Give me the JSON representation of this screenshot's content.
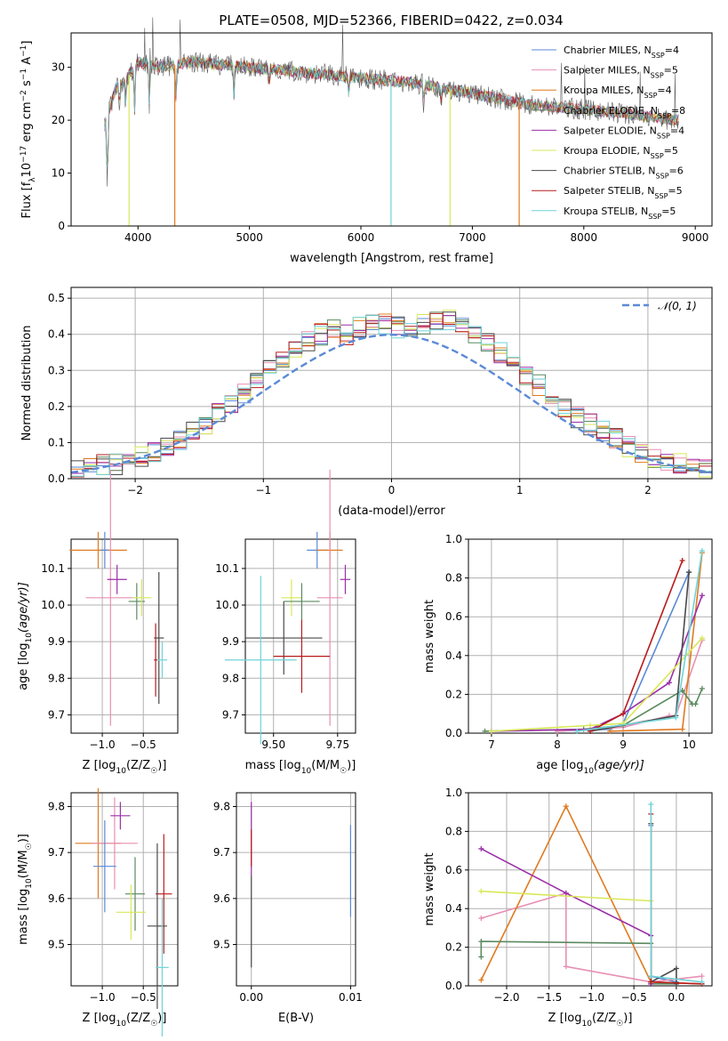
{
  "figure_title": "PLATE=0508, MJD=52366, FIBERID=0422, z=0.034",
  "colors": {
    "chabrier_miles": "#5b8ad6",
    "salpeter_miles": "#e88fb4",
    "kroupa_miles": "#e07a1f",
    "chabrier_elodie": "#5a8a5f",
    "salpeter_elodie": "#9b2fa8",
    "kroupa_elodie": "#d8e85a",
    "chabrier_stelib": "#4a4a4a",
    "salpeter_stelib": "#b81c1c",
    "kroupa_stelib": "#6fd3d8",
    "gaussian": "#5b8ad6",
    "grid": "#b0b0b0"
  },
  "chart_data": [
    {
      "id": "spectrum",
      "type": "line",
      "xlabel": "wavelength [Angstrom, rest frame]",
      "ylabel": "Flux [f_λ 10^-17 erg cm^-2 s^-1 A^-1]",
      "xlim": [
        3400,
        9150
      ],
      "ylim": [
        0,
        36.5
      ],
      "xticks": [
        4000,
        5000,
        6000,
        7000,
        8000,
        9000
      ],
      "yticks": [
        0,
        10,
        20,
        30
      ],
      "grid": false,
      "legend_position": "top-right",
      "legend": [
        {
          "key": "chabrier_miles",
          "label": "Chabrier MILES, N",
          "sub": "SSP",
          "eq": "=4"
        },
        {
          "key": "salpeter_miles",
          "label": "Salpeter MILES, N",
          "sub": "SSP",
          "eq": "=5"
        },
        {
          "key": "kroupa_miles",
          "label": "Kroupa MILES, N",
          "sub": "SSP",
          "eq": "=4"
        },
        {
          "key": "chabrier_elodie",
          "label": "Chabrier ELODIE, N",
          "sub": "SSP",
          "eq": "=8"
        },
        {
          "key": "salpeter_elodie",
          "label": "Salpeter ELODIE, N",
          "sub": "SSP",
          "eq": "=4"
        },
        {
          "key": "kroupa_elodie",
          "label": "Kroupa ELODIE, N",
          "sub": "SSP",
          "eq": "=5"
        },
        {
          "key": "chabrier_stelib",
          "label": "Chabrier STELIB, N",
          "sub": "SSP",
          "eq": "=6"
        },
        {
          "key": "salpeter_stelib",
          "label": "Salpeter STELIB, N",
          "sub": "SSP",
          "eq": "=5"
        },
        {
          "key": "kroupa_stelib",
          "label": "Kroupa STELIB, N",
          "sub": "SSP",
          "eq": "=5"
        }
      ],
      "continuum": [
        [
          3700,
          19
        ],
        [
          3800,
          26
        ],
        [
          3900,
          28
        ],
        [
          4000,
          31
        ],
        [
          4200,
          30
        ],
        [
          4500,
          31
        ],
        [
          5000,
          30
        ],
        [
          5500,
          29
        ],
        [
          6000,
          28
        ],
        [
          6500,
          27
        ],
        [
          7000,
          25
        ],
        [
          7500,
          23
        ],
        [
          8000,
          22
        ],
        [
          8500,
          21
        ],
        [
          8800,
          20
        ]
      ],
      "dropouts": [
        {
          "key": "kroupa_miles",
          "x": 4330,
          "y": 0
        },
        {
          "key": "kroupa_stelib",
          "x": 6270,
          "y": 0
        },
        {
          "key": "kroupa_elodie",
          "x": 6800,
          "y": 0
        },
        {
          "key": "kroupa_miles",
          "x": 7420,
          "y": 0
        },
        {
          "key": "kroupa_elodie",
          "x": 3920,
          "y": 0
        }
      ]
    },
    {
      "id": "residuals",
      "type": "histogram",
      "xlabel": "(data-model)/error",
      "ylabel": "Normed distribution",
      "xlim": [
        -2.5,
        2.5
      ],
      "ylim": [
        0,
        0.53
      ],
      "xticks": [
        -2,
        -1,
        0,
        1,
        2
      ],
      "yticks": [
        0.0,
        0.1,
        0.2,
        0.3,
        0.4,
        0.5
      ],
      "grid": true,
      "legend_position": "top-right",
      "gaussian_label": "N(0,1)",
      "bin_width": 0.1,
      "envelope": [
        0.02,
        0.03,
        0.04,
        0.04,
        0.05,
        0.06,
        0.07,
        0.09,
        0.11,
        0.13,
        0.15,
        0.18,
        0.21,
        0.24,
        0.27,
        0.3,
        0.33,
        0.36,
        0.38,
        0.4,
        0.41,
        0.4,
        0.42,
        0.43,
        0.43,
        0.42,
        0.41,
        0.43,
        0.44,
        0.44,
        0.42,
        0.4,
        0.38,
        0.35,
        0.32,
        0.29,
        0.26,
        0.23,
        0.2,
        0.17,
        0.15,
        0.13,
        0.11,
        0.09,
        0.07,
        0.06,
        0.05,
        0.04,
        0.04,
        0.03
      ]
    },
    {
      "id": "age_vs_z",
      "type": "errorbar",
      "xlabel": "Z [log10(Z/Z☉)]",
      "ylabel": "age [log10(age/yr)]",
      "xlim": [
        -1.38,
        -0.08
      ],
      "ylim": [
        9.65,
        10.18
      ],
      "xticks": [
        -1.0,
        -0.5
      ],
      "xticklabels": [
        "−1.0",
        "−0.5"
      ],
      "yticks": [
        9.7,
        9.8,
        9.9,
        10.0,
        10.1
      ],
      "grid": true,
      "points": [
        {
          "key": "kroupa_miles",
          "x": -1.05,
          "xerr": 0.35,
          "y": 10.15,
          "yerr": 0.05
        },
        {
          "key": "chabrier_miles",
          "x": -0.97,
          "xerr": 0.05,
          "y": 10.15,
          "yerr": 0.05
        },
        {
          "key": "salpeter_miles",
          "x": -0.9,
          "xerr": 0.3,
          "y": 10.02,
          "yerr": 0.35
        },
        {
          "key": "salpeter_elodie",
          "x": -0.82,
          "xerr": 0.12,
          "y": 10.07,
          "yerr": 0.04
        },
        {
          "key": "chabrier_elodie",
          "x": -0.58,
          "xerr": 0.1,
          "y": 10.01,
          "yerr": 0.05
        },
        {
          "key": "kroupa_elodie",
          "x": -0.52,
          "xerr": 0.12,
          "y": 10.02,
          "yerr": 0.05
        },
        {
          "key": "salpeter_stelib",
          "x": -0.35,
          "xerr": 0.02,
          "y": 9.85,
          "yerr": 0.1
        },
        {
          "key": "chabrier_stelib",
          "x": -0.31,
          "xerr": 0.06,
          "y": 9.91,
          "yerr": 0.18
        },
        {
          "key": "kroupa_stelib",
          "x": -0.27,
          "xerr": 0.06,
          "y": 9.85,
          "yerr": 0.05
        }
      ]
    },
    {
      "id": "age_vs_mass",
      "type": "errorbar",
      "xlabel": "mass [log10(M/M☉)]",
      "ylabel": "",
      "xlim": [
        9.39,
        9.82
      ],
      "ylim": [
        9.65,
        10.18
      ],
      "xticks": [
        9.5,
        9.75
      ],
      "xticklabels": [
        "9.50",
        "9.75"
      ],
      "yticks": [
        9.7,
        9.8,
        9.9,
        10.0,
        10.1
      ],
      "grid": true,
      "points": [
        {
          "key": "chabrier_miles",
          "x": 9.67,
          "xerr": 0.04,
          "y": 10.15,
          "yerr": 0.05
        },
        {
          "key": "kroupa_miles",
          "x": 9.72,
          "xerr": 0.05,
          "y": 10.15,
          "yerr": 0.05
        },
        {
          "key": "salpeter_elodie",
          "x": 9.78,
          "xerr": 0.02,
          "y": 10.07,
          "yerr": 0.04
        },
        {
          "key": "salpeter_miles",
          "x": 9.72,
          "xerr": 0.05,
          "y": 10.02,
          "yerr": 0.35
        },
        {
          "key": "kroupa_elodie",
          "x": 9.57,
          "xerr": 0.04,
          "y": 10.02,
          "yerr": 0.05
        },
        {
          "key": "chabrier_elodie",
          "x": 9.61,
          "xerr": 0.07,
          "y": 10.01,
          "yerr": 0.05
        },
        {
          "key": "chabrier_stelib",
          "x": 9.54,
          "xerr": 0.15,
          "y": 9.91,
          "yerr": 0.1
        },
        {
          "key": "salpeter_stelib",
          "x": 9.61,
          "xerr": 0.11,
          "y": 9.86,
          "yerr": 0.1
        },
        {
          "key": "kroupa_stelib",
          "x": 9.45,
          "xerr": 0.14,
          "y": 9.85,
          "yerr": 0.23
        }
      ]
    },
    {
      "id": "mass_weight_vs_age",
      "type": "line",
      "xlabel": "age [log10(age/yr)]",
      "ylabel": "mass weight",
      "xlim": [
        6.65,
        10.35
      ],
      "ylim": [
        0,
        1.0
      ],
      "xticks": [
        7,
        8,
        9,
        10
      ],
      "yticks": [
        0.0,
        0.2,
        0.4,
        0.6,
        0.8,
        1.0
      ],
      "grid": true,
      "series": [
        {
          "key": "chabrier_miles",
          "x": [
            8.0,
            8.8,
            9.0,
            10.0
          ],
          "y": [
            0.01,
            0.02,
            0.05,
            0.83
          ]
        },
        {
          "key": "salpeter_miles",
          "x": [
            8.0,
            9.0,
            9.7,
            9.8,
            10.2
          ],
          "y": [
            0.01,
            0.03,
            0.09,
            0.09,
            0.48
          ]
        },
        {
          "key": "kroupa_miles",
          "x": [
            8.8,
            9.9,
            10.2
          ],
          "y": [
            0.01,
            0.02,
            0.93
          ]
        },
        {
          "key": "chabrier_elodie",
          "x": [
            6.9,
            8.4,
            9.0,
            9.9,
            10.05,
            10.1,
            10.2
          ],
          "y": [
            0.01,
            0.02,
            0.04,
            0.22,
            0.15,
            0.15,
            0.23
          ]
        },
        {
          "key": "salpeter_elodie",
          "x": [
            7.0,
            8.5,
            9.0,
            9.7,
            10.2
          ],
          "y": [
            0.01,
            0.02,
            0.1,
            0.26,
            0.71
          ]
        },
        {
          "key": "kroupa_elodie",
          "x": [
            7.0,
            8.5,
            9.0,
            10.2
          ],
          "y": [
            0.01,
            0.04,
            0.05,
            0.49
          ]
        },
        {
          "key": "chabrier_stelib",
          "x": [
            8.5,
            9.8,
            10.0
          ],
          "y": [
            0.01,
            0.09,
            0.83
          ]
        },
        {
          "key": "salpeter_stelib",
          "x": [
            8.5,
            9.0,
            9.9
          ],
          "y": [
            0.01,
            0.1,
            0.89
          ]
        },
        {
          "key": "kroupa_stelib",
          "x": [
            8.3,
            9.8,
            10.2
          ],
          "y": [
            0.01,
            0.08,
            0.94
          ]
        }
      ]
    },
    {
      "id": "mass_vs_z",
      "type": "errorbar",
      "xlabel": "Z [log10(Z/Z☉)]",
      "ylabel": "mass [log10(M/M☉)]",
      "xlim": [
        -1.38,
        -0.08
      ],
      "ylim": [
        9.41,
        9.83
      ],
      "xticks": [
        -1.0,
        -0.5
      ],
      "xticklabels": [
        "−1.0",
        "−0.5"
      ],
      "yticks": [
        9.5,
        9.6,
        9.7,
        9.8
      ],
      "grid": true,
      "points": [
        {
          "key": "kroupa_miles",
          "x": -1.05,
          "xerr": 0.28,
          "y": 9.72,
          "yerr": 0.12
        },
        {
          "key": "salpeter_miles",
          "x": -0.85,
          "xerr": 0.28,
          "y": 9.72,
          "yerr": 0.1
        },
        {
          "key": "salpeter_elodie",
          "x": -0.78,
          "xerr": 0.12,
          "y": 9.78,
          "yerr": 0.03
        },
        {
          "key": "chabrier_miles",
          "x": -0.97,
          "xerr": 0.14,
          "y": 9.67,
          "yerr": 0.1
        },
        {
          "key": "chabrier_elodie",
          "x": -0.6,
          "xerr": 0.12,
          "y": 9.61,
          "yerr": 0.08
        },
        {
          "key": "kroupa_elodie",
          "x": -0.65,
          "xerr": 0.18,
          "y": 9.57,
          "yerr": 0.06
        },
        {
          "key": "salpeter_stelib",
          "x": -0.25,
          "xerr": 0.1,
          "y": 9.61,
          "yerr": 0.13
        },
        {
          "key": "chabrier_stelib",
          "x": -0.33,
          "xerr": 0.12,
          "y": 9.54,
          "yerr": 0.18
        },
        {
          "key": "kroupa_stelib",
          "x": -0.27,
          "xerr": 0.08,
          "y": 9.45,
          "yerr": 0.15
        }
      ]
    },
    {
      "id": "mass_vs_ebv",
      "type": "errorbar",
      "xlabel": "E(B-V)",
      "ylabel": "",
      "xlim": [
        -0.0015,
        0.0105
      ],
      "ylim": [
        9.41,
        9.83
      ],
      "xticks": [
        0.0,
        0.01
      ],
      "xticklabels": [
        "0.00",
        "0.01"
      ],
      "yticks": [
        9.5,
        9.6,
        9.7,
        9.8
      ],
      "grid": true,
      "points": [
        {
          "key": "salpeter_elodie",
          "x": 0.0,
          "xerr": 0.0,
          "y": 9.73,
          "yerr": 0.08
        },
        {
          "key": "salpeter_stelib",
          "x": 0.0,
          "xerr": 0.0,
          "y": 9.71,
          "yerr": 0.04
        },
        {
          "key": "chabrier_stelib",
          "x": 0.0,
          "xerr": 0.0,
          "y": 9.55,
          "yerr": 0.1
        },
        {
          "key": "chabrier_miles",
          "x": 0.01,
          "xerr": 0.0,
          "y": 9.66,
          "yerr": 0.1
        }
      ]
    },
    {
      "id": "mass_weight_vs_z",
      "type": "line",
      "xlabel": "Z [log10(Z/Z☉)]",
      "ylabel": "mass weight",
      "xlim": [
        -2.45,
        0.42
      ],
      "ylim": [
        0,
        1.0
      ],
      "xticks": [
        -2.0,
        -1.5,
        -1.0,
        -0.5,
        0.0
      ],
      "xticklabels": [
        "−2.0",
        "−1.5",
        "−1.0",
        "−0.5",
        "0.0"
      ],
      "yticks": [
        0.0,
        0.2,
        0.4,
        0.6,
        0.8,
        1.0
      ],
      "grid": true,
      "series": [
        {
          "key": "chabrier_miles",
          "x": [
            -0.3,
            -0.3,
            0.0
          ],
          "y": [
            0.83,
            0.05,
            0.02
          ]
        },
        {
          "key": "salpeter_miles",
          "x": [
            -2.3,
            -1.3,
            -1.3,
            -0.3,
            0.3
          ],
          "y": [
            0.35,
            0.48,
            0.1,
            0.02,
            0.05
          ]
        },
        {
          "key": "kroupa_miles",
          "x": [
            -2.3,
            -1.3,
            -0.3,
            0.3
          ],
          "y": [
            0.03,
            0.93,
            0.02,
            0.01
          ]
        },
        {
          "key": "chabrier_elodie",
          "x": [
            -2.3,
            -2.3,
            -0.3,
            -0.3,
            0.0
          ],
          "y": [
            0.15,
            0.23,
            0.22,
            0.01,
            0.01
          ]
        },
        {
          "key": "salpeter_elodie",
          "x": [
            -2.3,
            -1.3,
            -0.3,
            -0.3
          ],
          "y": [
            0.71,
            0.48,
            0.26,
            0.01
          ]
        },
        {
          "key": "kroupa_elodie",
          "x": [
            -2.3,
            -0.3
          ],
          "y": [
            0.49,
            0.44
          ]
        },
        {
          "key": "chabrier_stelib",
          "x": [
            -0.3,
            -0.3,
            0.0,
            0.0
          ],
          "y": [
            0.84,
            0.02,
            0.09,
            0.01
          ]
        },
        {
          "key": "salpeter_stelib",
          "x": [
            -0.3,
            -0.3,
            0.3
          ],
          "y": [
            0.89,
            0.02,
            0.01
          ]
        },
        {
          "key": "kroupa_stelib",
          "x": [
            -0.3,
            -0.3,
            0.3
          ],
          "y": [
            0.94,
            0.05,
            0.02
          ]
        }
      ]
    }
  ]
}
